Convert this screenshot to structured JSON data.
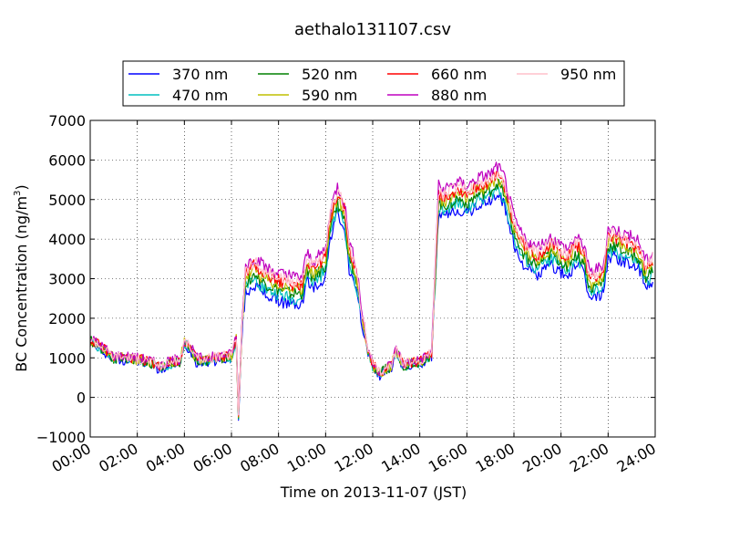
{
  "chart_data": {
    "type": "line",
    "title": "aethalo131107.csv",
    "xlabel": "Time on 2013-11-07 (JST)",
    "ylabel": "BC Concentration (ng/m³)",
    "ylabel_parts": {
      "main": "BC Concentration (ng/m",
      "sup": "3",
      "end": ")"
    },
    "xlim": [
      0,
      24
    ],
    "ylim": [
      -1000,
      7000
    ],
    "x_ticks": [
      "00:00",
      "02:00",
      "04:00",
      "06:00",
      "08:00",
      "10:00",
      "12:00",
      "14:00",
      "16:00",
      "18:00",
      "20:00",
      "22:00",
      "24:00"
    ],
    "y_ticks": [
      "7000",
      "6000",
      "5000",
      "4000",
      "3000",
      "2000",
      "1000",
      "0",
      "−1000"
    ],
    "grid": true,
    "legend_placement": "top-center",
    "legend_columns": 4,
    "base_profile": {
      "x": [
        0,
        0.5,
        1,
        1.5,
        2,
        2.5,
        3,
        3.5,
        3.8,
        4,
        4.3,
        4.5,
        5,
        5.5,
        6,
        6.2,
        6.3,
        6.45,
        6.6,
        6.8,
        7,
        7.3,
        7.6,
        8,
        8.5,
        9,
        9.2,
        9.5,
        10,
        10.2,
        10.5,
        10.8,
        11,
        11.3,
        11.6,
        11.8,
        12,
        12.3,
        12.5,
        12.8,
        13,
        13.3,
        13.5,
        14,
        14.3,
        14.5,
        14.8,
        15,
        15.3,
        15.6,
        16,
        16.5,
        17,
        17.3,
        17.6,
        18,
        18.3,
        18.6,
        19,
        19.3,
        19.6,
        20,
        20.3,
        20.6,
        21,
        21.2,
        21.5,
        21.8,
        22,
        22.3,
        22.6,
        23,
        23.3,
        23.6,
        23.9
      ],
      "y": [
        1450,
        1250,
        1000,
        1000,
        950,
        900,
        750,
        900,
        900,
        1400,
        1200,
        950,
        950,
        1000,
        1050,
        1500,
        -500,
        1800,
        3000,
        3100,
        3200,
        3000,
        2900,
        2800,
        2700,
        2700,
        3300,
        3100,
        3400,
        4400,
        5000,
        4600,
        3600,
        3000,
        1800,
        1200,
        800,
        600,
        700,
        800,
        1200,
        800,
        850,
        900,
        1000,
        1100,
        5000,
        4900,
        5000,
        5100,
        5000,
        5200,
        5300,
        5500,
        5200,
        4200,
        3800,
        3600,
        3400,
        3600,
        3700,
        3500,
        3400,
        3700,
        3500,
        2800,
        2900,
        3000,
        3900,
        3900,
        3800,
        3700,
        3600,
        3100,
        3300
      ]
    },
    "series": [
      {
        "name": "370 nm",
        "color": "#0000ff",
        "offset": -350
      },
      {
        "name": "470 nm",
        "color": "#00bfbf",
        "offset": -200
      },
      {
        "name": "520 nm",
        "color": "#008000",
        "offset": -80
      },
      {
        "name": "590 nm",
        "color": "#bfbf00",
        "offset": 50
      },
      {
        "name": "660 nm",
        "color": "#ff0000",
        "offset": 150
      },
      {
        "name": "880 nm",
        "color": "#bf00bf",
        "offset": 350
      },
      {
        "name": "950 nm",
        "color": "#ffc0cb",
        "offset": 220
      }
    ]
  }
}
